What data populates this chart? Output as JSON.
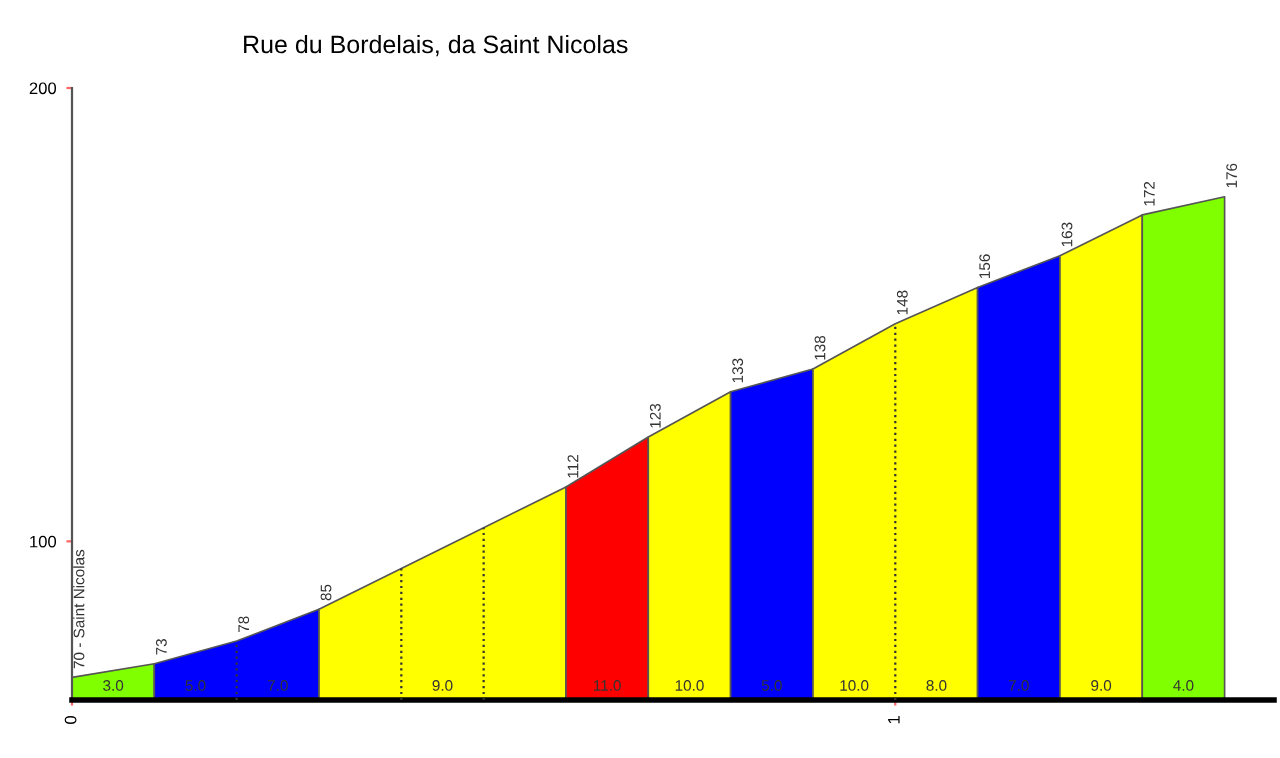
{
  "chart_data": {
    "type": "area",
    "title": "Rue du Bordelais, da Saint Nicolas",
    "xlim": [
      0,
      1.46
    ],
    "ylim": [
      65,
      200
    ],
    "xticks": [
      0,
      1
    ],
    "yticks": [
      100,
      200
    ],
    "grid": false,
    "series": [
      {
        "color": "#80ff00",
        "x": [
          0,
          0.1
        ],
        "values": [
          70,
          73
        ],
        "value_labels": [
          "70 - Saint Nicolas",
          null
        ]
      },
      {
        "color": "#0000ff",
        "x": [
          0.1,
          0.2,
          0.3
        ],
        "values": [
          73,
          78,
          85
        ],
        "value_labels": [
          "73",
          "78",
          null
        ]
      },
      {
        "color": "#ffff00",
        "x": [
          0.3,
          0.4,
          0.5,
          0.6
        ],
        "values": [
          85,
          94,
          103,
          112
        ],
        "value_labels": [
          "85",
          null,
          null,
          null
        ]
      },
      {
        "color": "#ff0000",
        "x": [
          0.6,
          0.7
        ],
        "values": [
          112,
          123
        ],
        "value_labels": [
          "112",
          null
        ]
      },
      {
        "color": "#ffff00",
        "x": [
          0.7,
          0.8
        ],
        "values": [
          123,
          133
        ],
        "value_labels": [
          "123",
          null
        ]
      },
      {
        "color": "#0000ff",
        "x": [
          0.8,
          0.9
        ],
        "values": [
          133,
          138
        ],
        "value_labels": [
          "133",
          null
        ]
      },
      {
        "color": "#ffff00",
        "x": [
          0.9,
          1.0,
          1.1
        ],
        "values": [
          138,
          148,
          156
        ],
        "value_labels": [
          "138",
          "148",
          null
        ]
      },
      {
        "color": "#0000ff",
        "x": [
          1.1,
          1.2
        ],
        "values": [
          156,
          163
        ],
        "value_labels": [
          "156",
          null
        ]
      },
      {
        "color": "#ffff00",
        "x": [
          1.2,
          1.3
        ],
        "values": [
          163,
          172
        ],
        "value_labels": [
          "163",
          null
        ]
      },
      {
        "color": "#80ff00",
        "x": [
          1.3,
          1.4
        ],
        "values": [
          172,
          176
        ],
        "value_labels": [
          "172",
          "176"
        ]
      }
    ],
    "annotations": [
      "3.0",
      "5.0",
      "7.0",
      "9.0",
      "11.0",
      "10.0",
      "5.0",
      "10.0",
      "8.0",
      "7.0",
      "9.0",
      "4.0"
    ]
  }
}
